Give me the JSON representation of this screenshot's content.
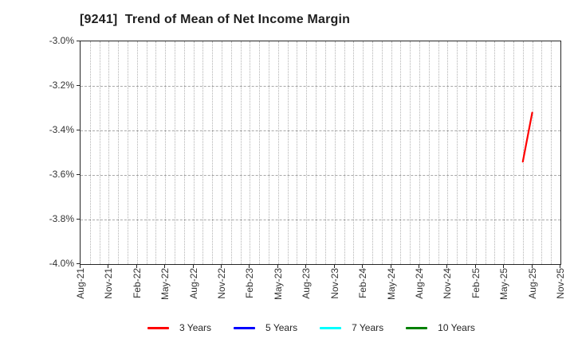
{
  "chart_data": {
    "type": "line",
    "title": "[9241]  Trend of Mean of Net Income Margin",
    "x_tick_labels": [
      "Aug-21",
      "Nov-21",
      "Feb-22",
      "May-22",
      "Aug-22",
      "Nov-22",
      "Feb-23",
      "May-23",
      "Aug-23",
      "Nov-23",
      "Feb-24",
      "May-24",
      "Aug-24",
      "Nov-24",
      "Feb-25",
      "May-25",
      "Aug-25",
      "Nov-25"
    ],
    "x_label_every_months": 3,
    "x_total_month_intervals": 51,
    "y_tick_labels": [
      "-3.0%",
      "-3.2%",
      "-3.4%",
      "-3.6%",
      "-3.8%",
      "-4.0%"
    ],
    "y_ticks": [
      -3.0,
      -3.2,
      -3.4,
      -3.6,
      -3.8,
      -4.0
    ],
    "y_max": -3.0,
    "y_min": -4.0,
    "y_unit": "%",
    "grid": true,
    "legend_position": "bottom center",
    "series": [
      {
        "name": "3 Years",
        "color": "#ff0000",
        "points": [
          {
            "label": "Jul-25",
            "month_index": 47,
            "value": -3.54
          },
          {
            "label": "Aug-25",
            "month_index": 48,
            "value": -3.32
          }
        ]
      },
      {
        "name": "5 Years",
        "color": "#0000ff",
        "points": []
      },
      {
        "name": "7 Years",
        "color": "#00ffff",
        "points": []
      },
      {
        "name": "10 Years",
        "color": "#008000",
        "points": []
      }
    ]
  }
}
